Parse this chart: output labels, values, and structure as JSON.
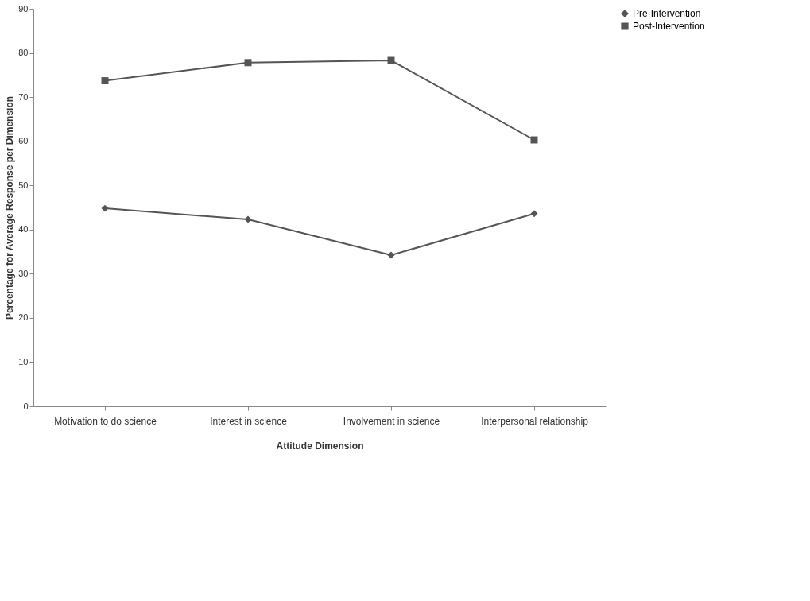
{
  "chart_data": {
    "type": "line",
    "xlabel": "Attitude Dimension",
    "ylabel": "Percentage for Average Response per Dimension",
    "categories": [
      "Motivation to do science",
      "Interest in science",
      "Involvement in science",
      "Interpersonal relationship"
    ],
    "series": [
      {
        "name": "Pre-Intervention",
        "color": "#555555",
        "marker": "diamond",
        "values": [
          44.8,
          42.3,
          34.2,
          43.6
        ]
      },
      {
        "name": "Post-Intervention",
        "color": "#555555",
        "marker": "square",
        "values": [
          73.7,
          77.8,
          78.3,
          60.3
        ]
      }
    ],
    "ylim": [
      0,
      90
    ],
    "yticks": [
      0,
      10,
      20,
      30,
      40,
      50,
      60,
      70,
      80,
      90
    ],
    "grid": false,
    "legend": "right",
    "line_style": "solid"
  }
}
